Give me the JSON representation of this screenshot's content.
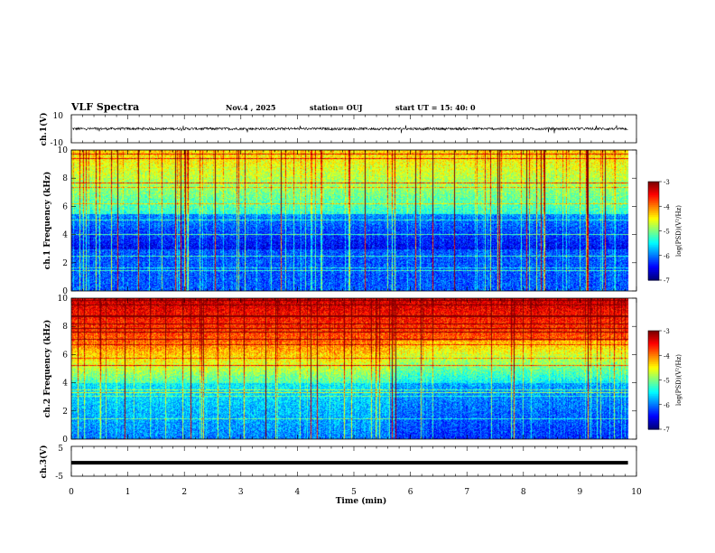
{
  "header": {
    "title": "VLF Spectra",
    "date": "Nov.4 , 2025",
    "station": "station= OUJ",
    "start_ut": "start UT = 15: 40: 0"
  },
  "chart_data": [
    {
      "type": "line",
      "name": "ch1-voltage",
      "ylabel": "ch.1(V)",
      "ylim": [
        -10,
        10
      ],
      "yticks": [
        "10",
        "-10"
      ],
      "baseline_value": 0
    },
    {
      "type": "heatmap",
      "name": "ch1-spectrogram",
      "ylabel": "ch.1 Frequency (kHz)",
      "ylim": [
        0,
        10
      ],
      "yticks": [
        "0",
        "2",
        "4",
        "6",
        "8",
        "10"
      ],
      "colorbar": {
        "label": "log(PSD)(V²/Hz)",
        "range": [
          -7,
          -3
        ],
        "ticks": [
          "-3",
          "-4",
          "-5",
          "-6",
          "-7"
        ]
      }
    },
    {
      "type": "heatmap",
      "name": "ch2-spectrogram",
      "ylabel": "ch.2 Frequency (kHz)",
      "ylim": [
        0,
        10
      ],
      "yticks": [
        "0",
        "2",
        "4",
        "6",
        "8",
        "10"
      ],
      "colorbar": {
        "label": "log(PSD)(V²/Hz)",
        "range": [
          -7,
          -3
        ],
        "ticks": [
          "-3",
          "-4",
          "-5",
          "-6",
          "-7"
        ]
      }
    },
    {
      "type": "line",
      "name": "ch3-voltage",
      "ylabel": "ch.3(V)",
      "ylim": [
        -5,
        5
      ],
      "yticks": [
        "5",
        "-5"
      ],
      "baseline_value": -0.5
    }
  ],
  "xaxis": {
    "label": "Time (min)",
    "range": [
      0,
      10
    ],
    "data_end": 9.85,
    "ticks": [
      "0",
      "1",
      "2",
      "3",
      "4",
      "5",
      "6",
      "7",
      "8",
      "9",
      "10"
    ]
  }
}
